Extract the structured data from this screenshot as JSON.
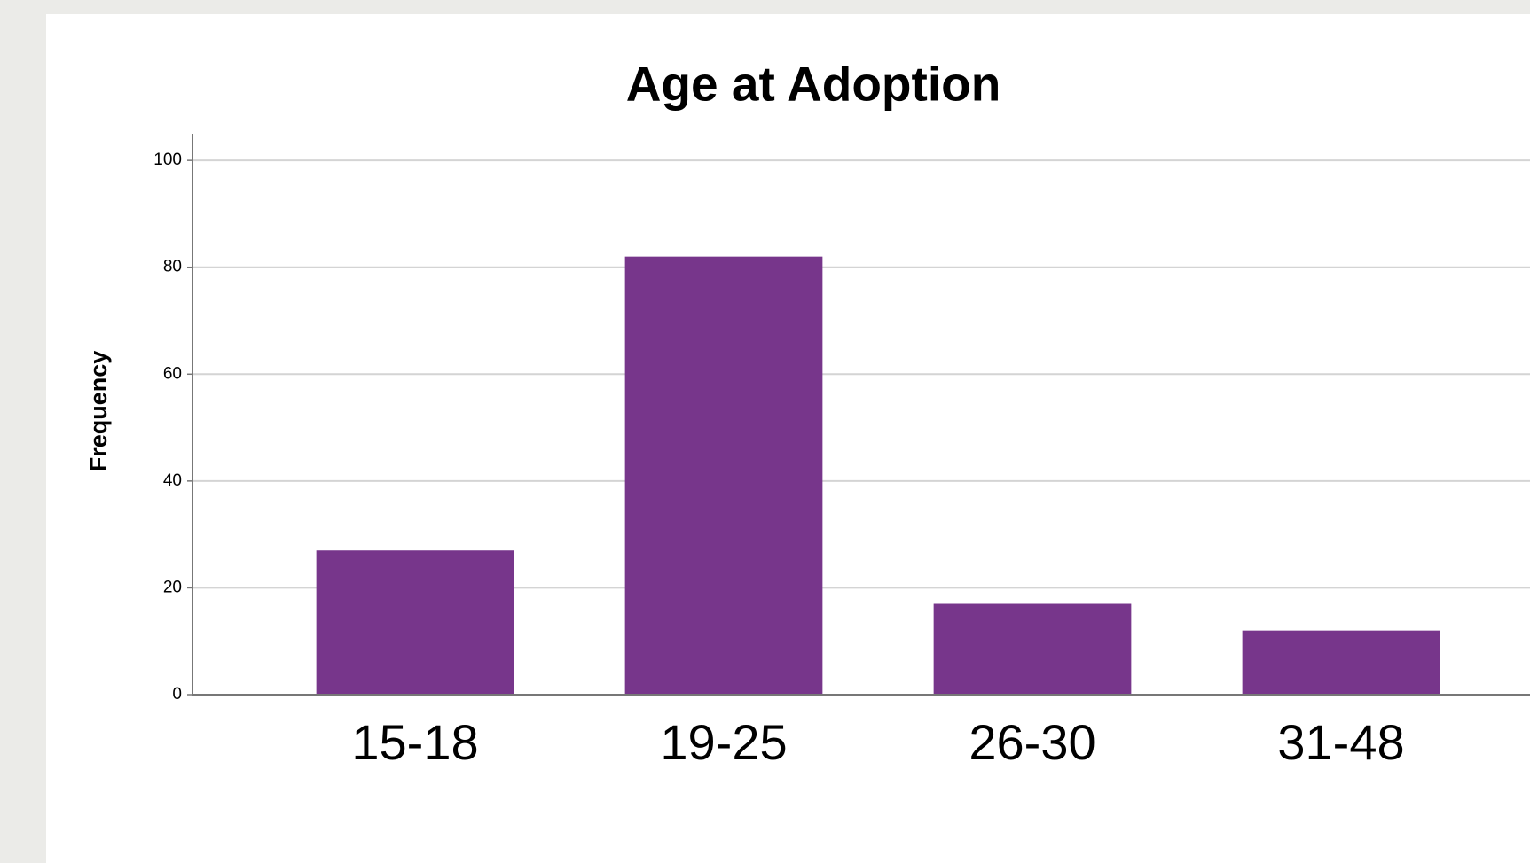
{
  "chart_data": {
    "type": "bar",
    "title": "Age at Adoption",
    "y_label": "Frequency",
    "categories": [
      "15-18",
      "19-25",
      "26-30",
      "31-48"
    ],
    "values": [
      27,
      82,
      17,
      12
    ],
    "color": "#77368b",
    "ylim": [
      0,
      105
    ],
    "yticks": [
      0,
      20,
      40,
      60,
      80,
      100
    ],
    "grid": true
  }
}
